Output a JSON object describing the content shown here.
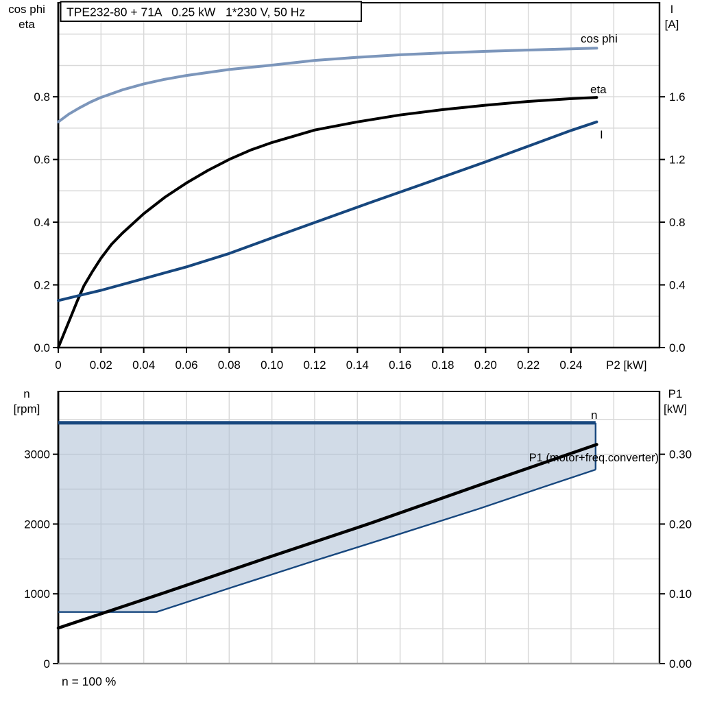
{
  "title_box": {
    "text": "TPE232-80 + 71A   0.25 kW   1*230 V, 50 Hz"
  },
  "colors": {
    "black": "#000000",
    "dark_blue": "#17477E",
    "light_blue": "#7C96BB",
    "grid": "#D9D9D9",
    "area_fill": "rgba(172,190,212,0.55)",
    "axis_gray": "#999999"
  },
  "chart_data": [
    {
      "type": "line",
      "title": "TPE232-80 + 71A   0.25 kW   1*230 V, 50 Hz",
      "xlabel": "P2 [kW]",
      "x_axis": {
        "range": [
          0,
          0.2814
        ],
        "tick_labels": [
          "0",
          "0.02",
          "0.04",
          "0.06",
          "0.08",
          "0.10",
          "0.12",
          "0.14",
          "0.16",
          "0.18",
          "0.20",
          "0.22",
          "0.24"
        ]
      },
      "left_axis": {
        "title_lines": [
          "cos phi",
          "eta"
        ],
        "range": [
          0,
          1.1
        ],
        "tick_labels": [
          "0.0",
          "0.2",
          "0.4",
          "0.6",
          "0.8"
        ]
      },
      "right_axis": {
        "title_lines": [
          "I",
          "[A]"
        ],
        "range": [
          0,
          2.2
        ],
        "tick_labels": [
          "0.0",
          "0.4",
          "0.8",
          "1.2",
          "1.6"
        ]
      },
      "grid": "on",
      "series": [
        {
          "name": "cos_phi",
          "label": "cos phi",
          "axis": "left",
          "color": "light_blue",
          "points": [
            [
              0,
              0.72
            ],
            [
              0.005,
              0.745
            ],
            [
              0.01,
              0.765
            ],
            [
              0.015,
              0.783
            ],
            [
              0.02,
              0.798
            ],
            [
              0.03,
              0.822
            ],
            [
              0.04,
              0.841
            ],
            [
              0.05,
              0.856
            ],
            [
              0.06,
              0.868
            ],
            [
              0.08,
              0.887
            ],
            [
              0.1,
              0.901
            ],
            [
              0.12,
              0.916
            ],
            [
              0.14,
              0.926
            ],
            [
              0.16,
              0.934
            ],
            [
              0.18,
              0.94
            ],
            [
              0.2,
              0.945
            ],
            [
              0.22,
              0.949
            ],
            [
              0.24,
              0.953
            ],
            [
              0.252,
              0.955
            ]
          ]
        },
        {
          "name": "eta",
          "label": "eta",
          "axis": "left",
          "color": "black",
          "points": [
            [
              0,
              0
            ],
            [
              0.003,
              0.05
            ],
            [
              0.006,
              0.1
            ],
            [
              0.009,
              0.15
            ],
            [
              0.012,
              0.197
            ],
            [
              0.016,
              0.243
            ],
            [
              0.02,
              0.285
            ],
            [
              0.025,
              0.33
            ],
            [
              0.03,
              0.365
            ],
            [
              0.04,
              0.427
            ],
            [
              0.05,
              0.48
            ],
            [
              0.06,
              0.525
            ],
            [
              0.07,
              0.565
            ],
            [
              0.08,
              0.6
            ],
            [
              0.09,
              0.63
            ],
            [
              0.1,
              0.654
            ],
            [
              0.12,
              0.694
            ],
            [
              0.14,
              0.72
            ],
            [
              0.16,
              0.742
            ],
            [
              0.18,
              0.759
            ],
            [
              0.2,
              0.773
            ],
            [
              0.22,
              0.785
            ],
            [
              0.24,
              0.794
            ],
            [
              0.252,
              0.798
            ]
          ]
        },
        {
          "name": "current",
          "label": "I",
          "axis": "right",
          "color": "dark_blue",
          "points": [
            [
              0,
              0.3
            ],
            [
              0.02,
              0.365
            ],
            [
              0.04,
              0.44
            ],
            [
              0.06,
              0.515
            ],
            [
              0.08,
              0.6
            ],
            [
              0.09,
              0.65
            ],
            [
              0.1,
              0.7
            ],
            [
              0.146,
              0.925
            ],
            [
              0.17,
              1.04
            ],
            [
              0.2,
              1.185
            ],
            [
              0.22,
              1.285
            ],
            [
              0.24,
              1.385
            ],
            [
              0.252,
              1.44
            ]
          ]
        }
      ]
    },
    {
      "type": "line",
      "xlabel": "",
      "x_axis": {
        "range": [
          0,
          0.2814
        ],
        "tick_labels": []
      },
      "left_axis": {
        "title_lines": [
          "n",
          "[rpm]"
        ],
        "range": [
          0,
          3900
        ],
        "tick_labels": [
          "0",
          "1000",
          "2000",
          "3000"
        ]
      },
      "right_axis": {
        "title_lines": [
          "P1",
          "[kW]"
        ],
        "range": [
          0,
          0.39
        ],
        "tick_labels": [
          "0.00",
          "0.10",
          "0.20",
          "0.30"
        ]
      },
      "grid": "on",
      "annotation": "n = 100 %",
      "series": [
        {
          "name": "n_max",
          "label": "n",
          "axis": "left",
          "color": "dark_blue",
          "points": [
            [
              0,
              3450
            ],
            [
              0.2515,
              3450
            ]
          ]
        },
        {
          "name": "n_right_edge",
          "label": "",
          "axis": "left",
          "color": "dark_blue",
          "points": [
            [
              0.2515,
              3450
            ],
            [
              0.2515,
              2780
            ]
          ]
        },
        {
          "name": "n_min",
          "label": "",
          "axis": "left",
          "color": "dark_blue",
          "points": [
            [
              0,
              740
            ],
            [
              0.046,
              740
            ],
            [
              0.082,
              1100
            ],
            [
              0.12,
              1475
            ],
            [
              0.159,
              1850
            ],
            [
              0.197,
              2220
            ],
            [
              0.226,
              2520
            ],
            [
              0.2515,
              2780
            ]
          ]
        },
        {
          "name": "p1",
          "label": "P1 (motor+freq.converter)",
          "axis": "right",
          "color": "black",
          "points": [
            [
              0,
              0.051
            ],
            [
              0.05,
              0.102
            ],
            [
              0.1,
              0.154
            ],
            [
              0.146,
              0.201
            ],
            [
              0.2,
              0.259
            ],
            [
              0.252,
              0.314
            ]
          ]
        }
      ],
      "area": {
        "name": "speed_range",
        "between": [
          "n_max",
          "n_min"
        ],
        "closed_right": true
      }
    }
  ]
}
